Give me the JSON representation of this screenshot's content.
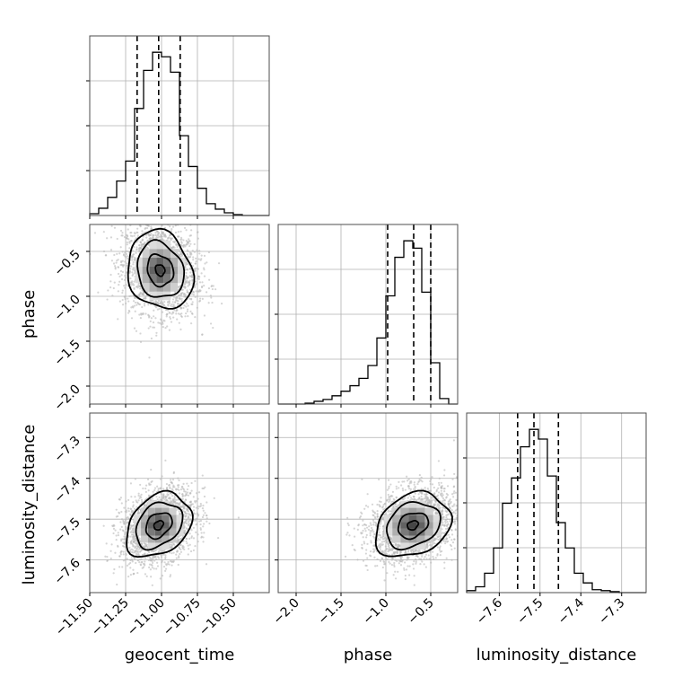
{
  "chart_data": {
    "type": "corner",
    "parameters": [
      "geocent_time",
      "phase",
      "luminosity_distance"
    ],
    "axis_labels": {
      "geocent_time": "geocent_time",
      "phase": "phase",
      "luminosity_distance": "luminosity_distance"
    },
    "ranges": {
      "geocent_time": [
        -11.5,
        -10.25
      ],
      "phase": [
        -2.2,
        -0.2
      ],
      "luminosity_distance": [
        -7.68,
        -7.24
      ]
    },
    "ticks": {
      "geocent_time": [
        -11.5,
        -11.25,
        -11.0,
        -10.75,
        -10.5
      ],
      "phase": [
        -2.0,
        -1.5,
        -1.0,
        -0.5
      ],
      "luminosity_distance": [
        -7.6,
        -7.5,
        -7.4,
        -7.3
      ]
    },
    "tick_labels": {
      "geocent_time": [
        "−11.50",
        "−11.25",
        "−11.00",
        "−10.75",
        "−10.50"
      ],
      "phase": [
        "−2.0",
        "−1.5",
        "−1.0",
        "−0.5"
      ],
      "luminosity_distance": [
        "−7.6",
        "−7.5",
        "−7.4",
        "−7.3"
      ]
    },
    "quantiles": {
      "geocent_time": [
        -11.17,
        -11.02,
        -10.87
      ],
      "phase": [
        -0.98,
        -0.69,
        -0.5
      ],
      "luminosity_distance": [
        -7.555,
        -7.515,
        -7.455
      ]
    },
    "histograms_1d": {
      "geocent_time": {
        "edges_range": [
          -11.5,
          -10.25
        ],
        "bins": 20,
        "counts": [
          2,
          8,
          20,
          38,
          60,
          118,
          160,
          180,
          175,
          158,
          88,
          54,
          30,
          13,
          7,
          3,
          1,
          0,
          0,
          0
        ]
      },
      "phase": {
        "edges_range": [
          -2.2,
          -0.2
        ],
        "bins": 20,
        "counts": [
          0,
          0,
          0,
          1,
          3,
          5,
          9,
          14,
          20,
          28,
          42,
          72,
          118,
          160,
          178,
          170,
          122,
          45,
          6,
          0
        ]
      },
      "luminosity_distance": {
        "edges_range": [
          -7.68,
          -7.24
        ],
        "bins": 20,
        "counts": [
          2,
          6,
          20,
          46,
          92,
          118,
          150,
          168,
          158,
          120,
          72,
          46,
          20,
          10,
          3,
          2,
          1,
          0,
          0,
          0
        ]
      }
    },
    "joint_2d": [
      {
        "x": "geocent_time",
        "y": "phase",
        "mean": [
          -11.01,
          -0.71
        ],
        "sd": [
          0.13,
          0.25
        ],
        "corr": -0.15
      },
      {
        "x": "geocent_time",
        "y": "luminosity_distance",
        "mean": [
          -11.02,
          -7.515
        ],
        "sd": [
          0.13,
          0.045
        ],
        "corr": 0.3
      },
      {
        "x": "phase",
        "y": "luminosity_distance",
        "mean": [
          -0.7,
          -7.515
        ],
        "sd": [
          0.24,
          0.045
        ],
        "corr": 0.25
      }
    ],
    "contour_levels": [
      0.118,
      0.393,
      0.675,
      0.864
    ],
    "grid": true
  }
}
